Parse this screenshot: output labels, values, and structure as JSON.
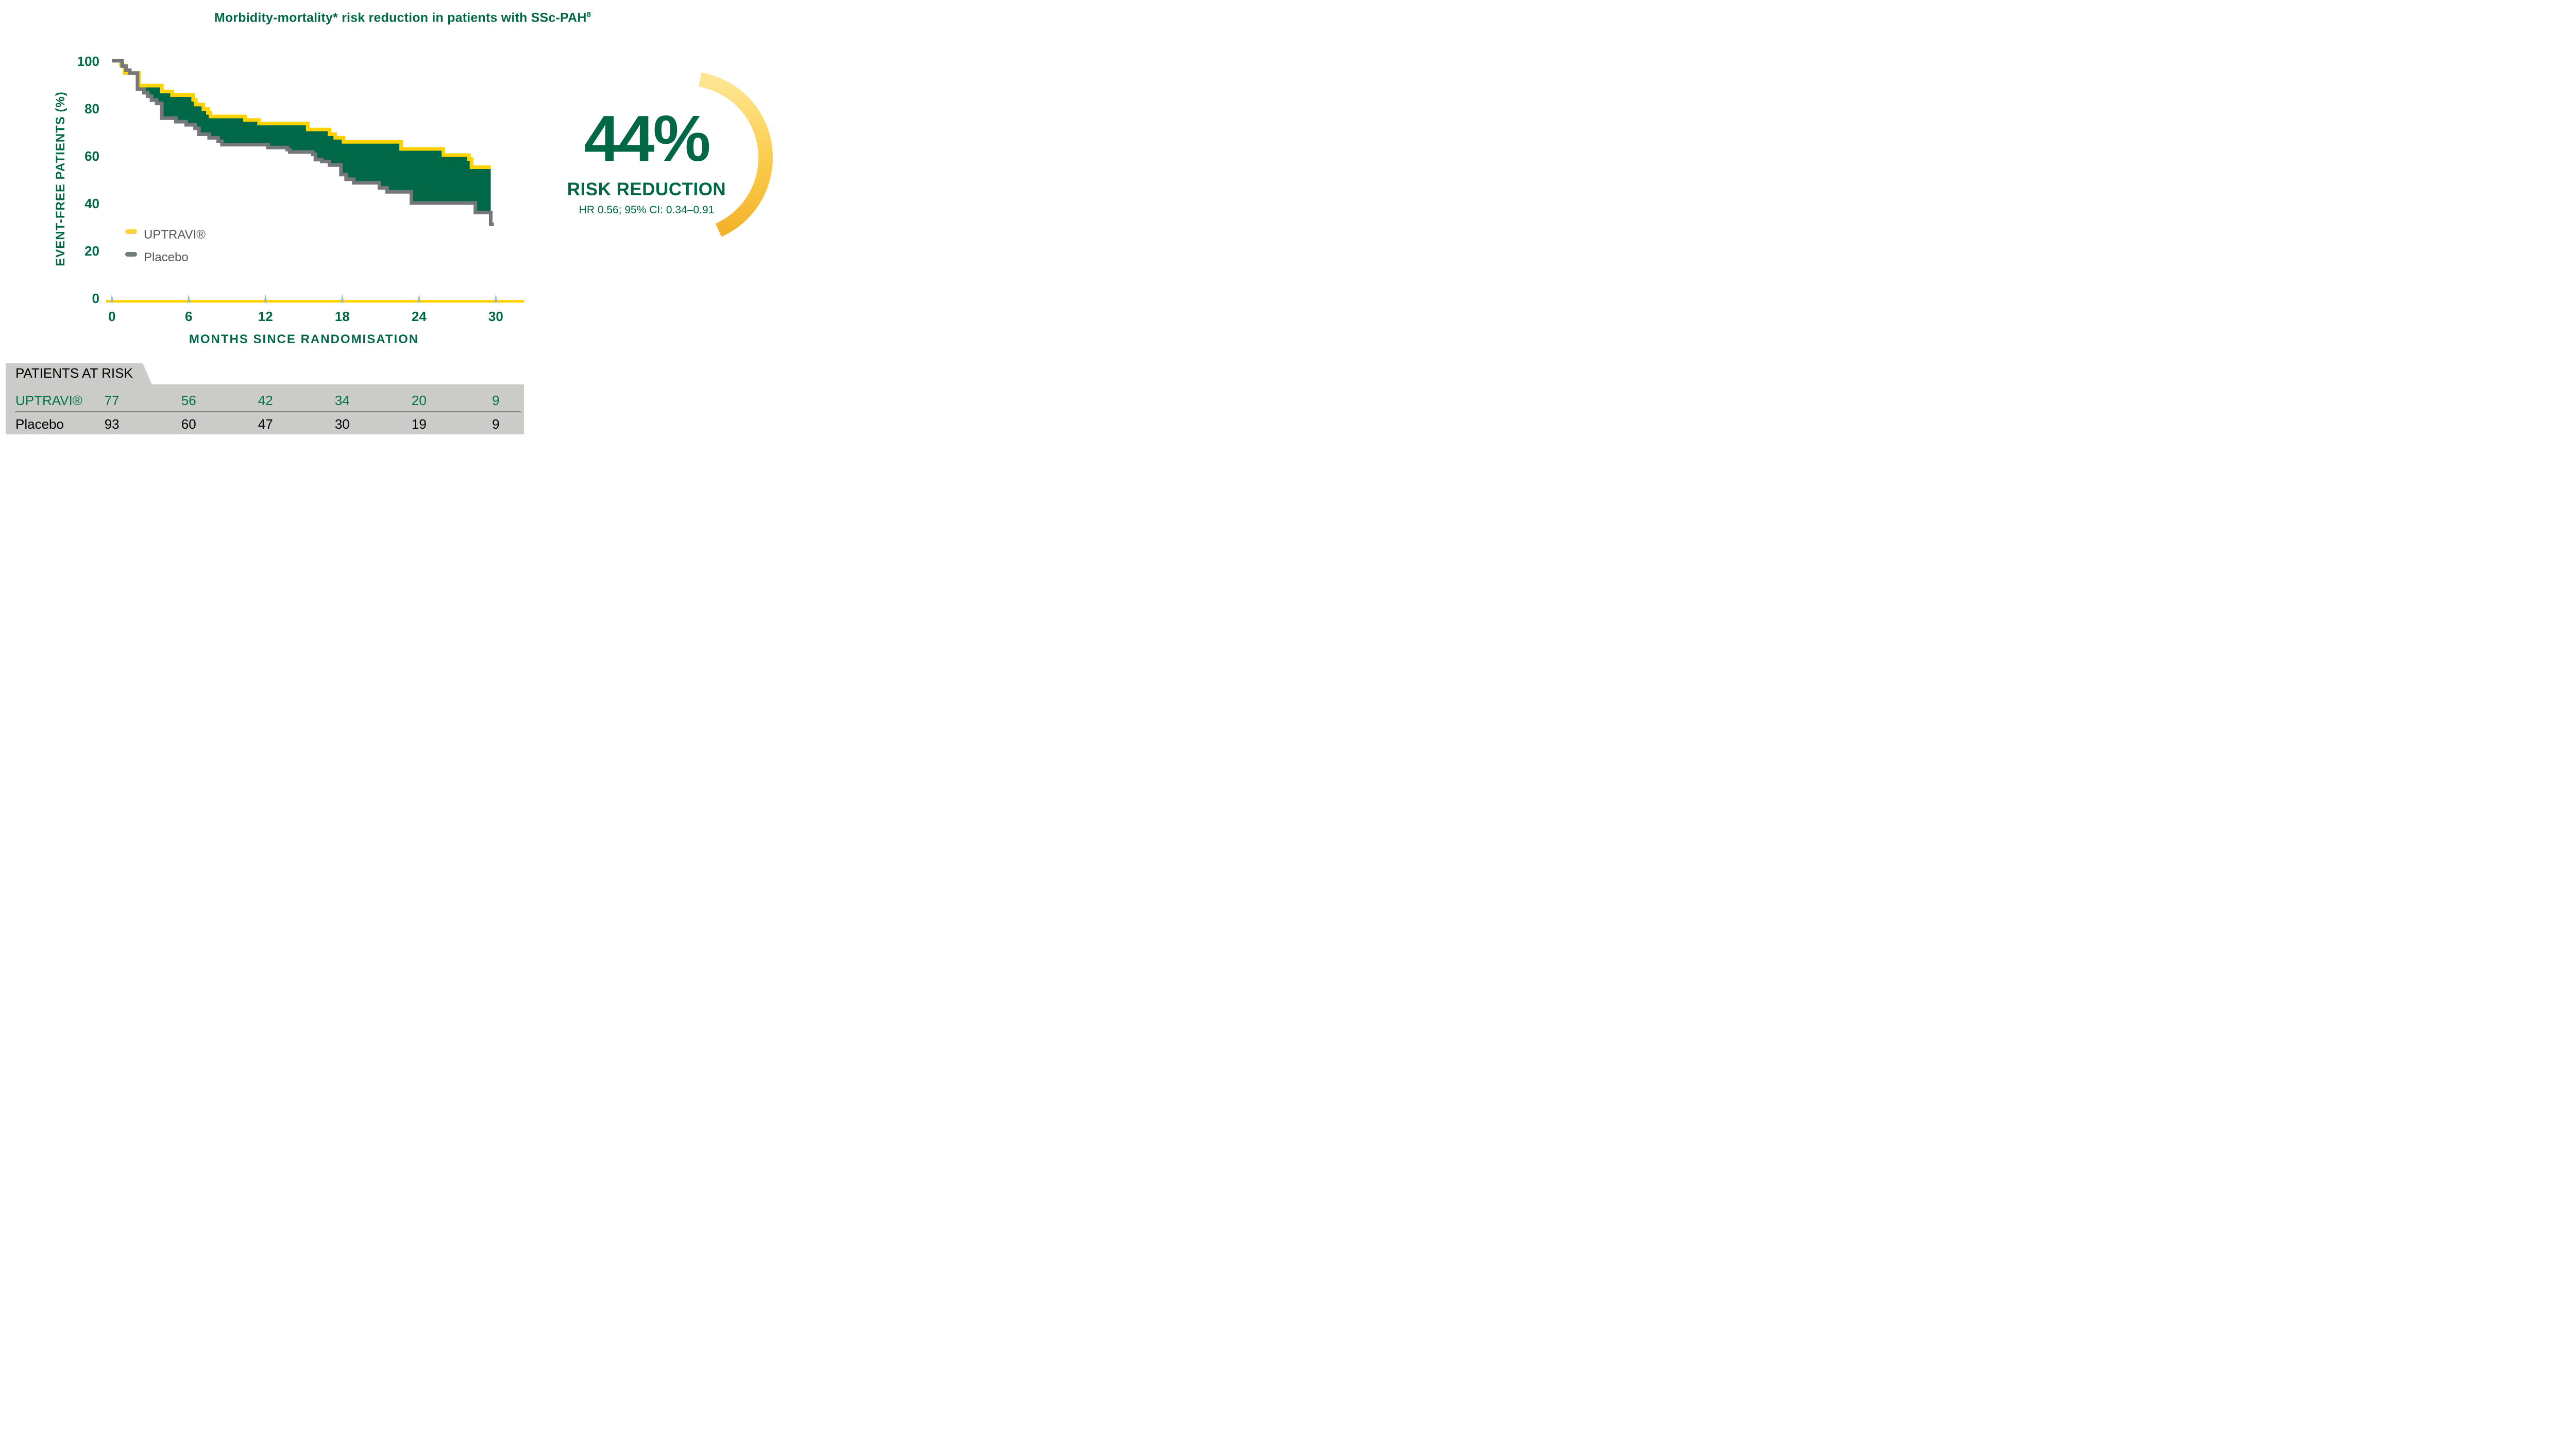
{
  "title": {
    "text": "Morbidity-mortality* risk reduction in patients with SSc-PAH",
    "superscript": "8"
  },
  "colors": {
    "green": "#006747",
    "table_green": "#007549",
    "yellow": "#FFD200",
    "legend_yellow": "#FFD23F",
    "gray_line": "#75787B",
    "legend_gray": "#6F7C78",
    "legend_text": "#54565A",
    "triangle": "#A7BDAF",
    "table_bg": "#CBCBC9",
    "separator": "#7D8C86",
    "black": "#000000",
    "arc_top": "#FFE593",
    "arc_mid": "#FBCE4F",
    "arc_bottom": "#F3B32B"
  },
  "chart_data": {
    "type": "line",
    "subtype": "kaplan-meier-step-curves-with-area-fill",
    "title": "Morbidity-mortality* risk reduction in patients with SSc-PAH(8)",
    "xlabel": "MONTHS SINCE RANDOMISATION",
    "ylabel": "EVENT-FREE PATIENTS (%)",
    "xlim": [
      0,
      30
    ],
    "ylim": [
      0,
      100
    ],
    "x_ticks": [
      0,
      6,
      12,
      18,
      24,
      30
    ],
    "y_ticks": [
      100,
      80,
      60,
      40,
      20,
      0
    ],
    "grid": false,
    "legend_position": "inside-left-middle",
    "series": [
      {
        "name": "UPTRAVI®",
        "end_month": 29.6,
        "steps": [
          [
            0,
            100
          ],
          [
            0.7,
            98
          ],
          [
            1.0,
            94.8
          ],
          [
            2.1,
            89.5
          ],
          [
            3.9,
            87
          ],
          [
            4.7,
            85.5
          ],
          [
            6.35,
            83.5
          ],
          [
            6.55,
            81.5
          ],
          [
            7.15,
            79.6
          ],
          [
            7.5,
            78
          ],
          [
            7.7,
            76.5
          ],
          [
            10.4,
            75
          ],
          [
            11.5,
            73.5
          ],
          [
            15.3,
            71
          ],
          [
            17.0,
            69
          ],
          [
            17.45,
            67.5
          ],
          [
            18.1,
            65.8
          ],
          [
            22.6,
            62.8
          ],
          [
            25.9,
            60.2
          ],
          [
            27.9,
            58.5
          ],
          [
            28.1,
            55.1
          ]
        ]
      },
      {
        "name": "Placebo",
        "end_month": 29.85,
        "steps": [
          [
            0,
            100
          ],
          [
            0.8,
            97.7
          ],
          [
            1.1,
            96
          ],
          [
            1.4,
            94.8
          ],
          [
            2.0,
            88
          ],
          [
            2.5,
            86.5
          ],
          [
            2.8,
            85
          ],
          [
            3.1,
            83.4
          ],
          [
            3.5,
            82
          ],
          [
            3.9,
            75.8
          ],
          [
            5.0,
            74.3
          ],
          [
            5.8,
            73
          ],
          [
            6.5,
            71.5
          ],
          [
            6.8,
            69
          ],
          [
            7.6,
            67.5
          ],
          [
            8.3,
            66
          ],
          [
            8.6,
            64.6
          ],
          [
            12.2,
            63.4
          ],
          [
            13.7,
            62.5
          ],
          [
            13.9,
            61.5
          ],
          [
            15.7,
            60.5
          ],
          [
            15.9,
            58.3
          ],
          [
            16.4,
            57.5
          ],
          [
            17.0,
            56
          ],
          [
            17.9,
            52
          ],
          [
            18.3,
            50
          ],
          [
            18.9,
            48.5
          ],
          [
            20.9,
            46.4
          ],
          [
            21.5,
            44.7
          ],
          [
            23.4,
            40
          ],
          [
            28.4,
            36
          ],
          [
            29.6,
            31
          ]
        ]
      }
    ],
    "fill_between": {
      "from_month": 2.1,
      "to_month": 29.6,
      "upper": "UPTRAVI®",
      "lower": "Placebo"
    }
  },
  "legend": {
    "items": [
      {
        "label": "UPTRAVI®",
        "swatch": "yellow-dash"
      },
      {
        "label": "Placebo",
        "swatch": "gray-dash"
      }
    ]
  },
  "callout": {
    "value": "44%",
    "label": "RISK REDUCTION",
    "detail": "HR 0.56; 95% CI: 0.34–0.91"
  },
  "risk_table": {
    "header": "PATIENTS AT RISK",
    "columns_months": [
      0,
      6,
      12,
      18,
      24,
      30
    ],
    "rows": [
      {
        "label": "UPTRAVI®",
        "color_key": "table_green",
        "values": [
          "77",
          "56",
          "42",
          "34",
          "20",
          "9"
        ]
      },
      {
        "label": "Placebo",
        "color_key": "black",
        "values": [
          "93",
          "60",
          "47",
          "30",
          "19",
          "9"
        ]
      }
    ]
  }
}
